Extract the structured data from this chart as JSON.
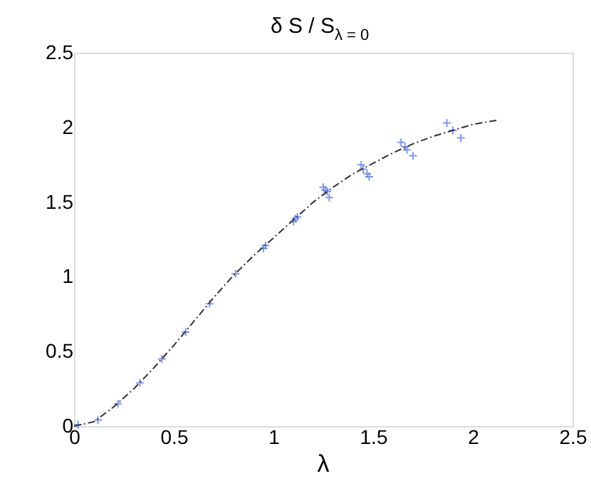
{
  "chart_data": {
    "type": "scatter",
    "title": "δ S / S$_{λ = 0}$",
    "xlabel": "λ",
    "xlim": [
      0,
      2.5
    ],
    "ylim": [
      0,
      2.5
    ],
    "xticks": [
      0,
      0.5,
      1,
      1.5,
      2,
      2.5
    ],
    "yticks": [
      0,
      0.5,
      1,
      1.5,
      2,
      2.5
    ],
    "grid": false,
    "marker": "cross",
    "series": [
      {
        "color": "#4a6cf7",
        "x": [
          0.02,
          0.12,
          0.22,
          0.33,
          0.44,
          0.56,
          0.68,
          0.81,
          0.95,
          0.96,
          1.1,
          1.11,
          1.12,
          1.25,
          1.26,
          1.27,
          1.28,
          1.44,
          1.45,
          1.47,
          1.48,
          1.64,
          1.66,
          1.67,
          1.7,
          1.87,
          1.9,
          1.94
        ],
        "values": [
          0.01,
          0.04,
          0.15,
          0.29,
          0.45,
          0.63,
          0.82,
          1.02,
          1.19,
          1.21,
          1.37,
          1.39,
          1.4,
          1.6,
          1.58,
          1.57,
          1.53,
          1.75,
          1.72,
          1.69,
          1.67,
          1.9,
          1.87,
          1.85,
          1.81,
          2.03,
          1.98,
          1.93
        ]
      },
      {
        "type": "line",
        "color": "#333333",
        "line_style": "dashed",
        "marker": "none",
        "x": [
          0,
          0.1,
          0.2,
          0.3,
          0.4,
          0.5,
          0.6,
          0.7,
          0.8,
          0.9,
          1.0,
          1.1,
          1.2,
          1.3,
          1.4,
          1.5,
          1.6,
          1.7,
          1.8,
          1.9,
          2.0,
          2.13
        ],
        "values": [
          0,
          0.03,
          0.13,
          0.25,
          0.39,
          0.54,
          0.7,
          0.86,
          1.01,
          1.14,
          1.26,
          1.38,
          1.5,
          1.6,
          1.69,
          1.76,
          1.83,
          1.89,
          1.94,
          1.98,
          2.02,
          2.05
        ]
      }
    ]
  }
}
